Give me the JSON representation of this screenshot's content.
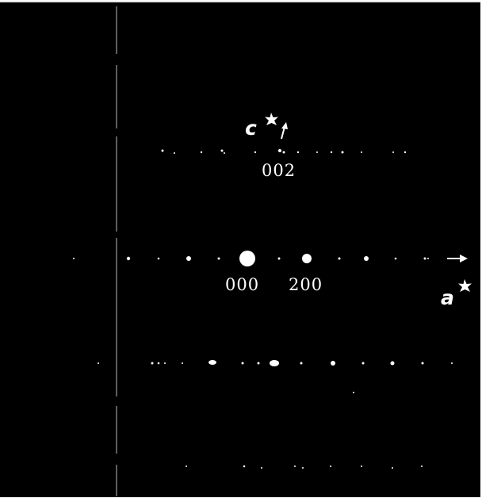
{
  "pattern": {
    "axis_labels": {
      "a_star": {
        "letter": "a",
        "mark": "star"
      },
      "c_star": {
        "letter": "c",
        "mark": "star"
      }
    },
    "reflection_labels": {
      "origin": "000",
      "h200": "200",
      "l002": "002"
    }
  }
}
